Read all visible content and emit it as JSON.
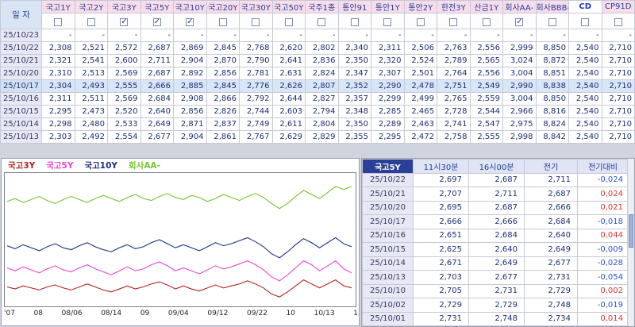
{
  "colors": {
    "header_bg": "#f8dcea",
    "header_text": "#21409a",
    "date_col_bg": "#e8e8f4",
    "selected_row_bg": "#d9e6f8",
    "grid_line": "#c6c9d8",
    "value_text": "#1c2f72",
    "detail_title_bg": "#2b3f96",
    "positive_diff": "#e03131",
    "negative_diff": "#2a52cc",
    "cd_column_bg": "#ffffff"
  },
  "main_table": {
    "date_header": "일 자",
    "columns": [
      {
        "label": "국고1Y",
        "checked": false
      },
      {
        "label": "국고2Y",
        "checked": false
      },
      {
        "label": "국고3Y",
        "checked": true
      },
      {
        "label": "국고5Y",
        "checked": true
      },
      {
        "label": "국고10Y",
        "checked": true
      },
      {
        "label": "국고20Y",
        "checked": false
      },
      {
        "label": "국고30Y",
        "checked": false
      },
      {
        "label": "국고50Y",
        "checked": false
      },
      {
        "label": "국주1종",
        "checked": false
      },
      {
        "label": "통안91",
        "checked": false
      },
      {
        "label": "통안1Y",
        "checked": false
      },
      {
        "label": "통안2Y",
        "checked": false
      },
      {
        "label": "한전3Y",
        "checked": false
      },
      {
        "label": "산금1Y",
        "checked": false
      },
      {
        "label": "회사AA-",
        "checked": true
      },
      {
        "label": "회사BBB-",
        "checked": false
      },
      {
        "label": "CD",
        "checked": false,
        "highlighted": true
      },
      {
        "label": "CP91D",
        "checked": false
      }
    ],
    "rows": [
      {
        "date": "25/10/23",
        "values": [
          "-",
          "-",
          "-",
          "-",
          "-",
          "-",
          "-",
          "-",
          "-",
          "-",
          "-",
          "-",
          "-",
          "-",
          "-",
          "-",
          "-",
          "-"
        ]
      },
      {
        "date": "25/10/22",
        "values": [
          "2,308",
          "2,521",
          "2,572",
          "2,687",
          "2,869",
          "2,845",
          "2,768",
          "2,620",
          "2,802",
          "2,340",
          "2,311",
          "2,506",
          "2,763",
          "2,556",
          "2,999",
          "8,850",
          "2,540",
          "2,710"
        ]
      },
      {
        "date": "25/10/21",
        "values": [
          "2,321",
          "2,541",
          "2,600",
          "2,711",
          "2,904",
          "2,870",
          "2,790",
          "2,641",
          "2,836",
          "2,350",
          "2,320",
          "2,524",
          "2,789",
          "2,565",
          "3,024",
          "8,872",
          "2,540",
          "2,710"
        ]
      },
      {
        "date": "25/10/20",
        "values": [
          "2,310",
          "2,513",
          "2,569",
          "2,687",
          "2,892",
          "2,856",
          "2,781",
          "2,631",
          "2,824",
          "2,347",
          "2,307",
          "2,501",
          "2,764",
          "2,556",
          "3,004",
          "8,851",
          "2,540",
          "2,710"
        ]
      },
      {
        "date": "25/10/17",
        "selected": true,
        "values": [
          "2,304",
          "2,493",
          "2,555",
          "2,666",
          "2,885",
          "2,845",
          "2,776",
          "2,626",
          "2,807",
          "2,352",
          "2,290",
          "2,478",
          "2,751",
          "2,549",
          "2,990",
          "8,838",
          "2,540",
          "2,710"
        ]
      },
      {
        "date": "25/10/16",
        "values": [
          "2,311",
          "2,511",
          "2,569",
          "2,684",
          "2,908",
          "2,866",
          "2,792",
          "2,644",
          "2,827",
          "2,357",
          "2,299",
          "2,499",
          "2,765",
          "2,559",
          "3,004",
          "8,850",
          "2,540",
          "2,710"
        ]
      },
      {
        "date": "25/10/15",
        "values": [
          "2,295",
          "2,473",
          "2,520",
          "2,640",
          "2,856",
          "2,826",
          "2,744",
          "2,603",
          "2,794",
          "2,348",
          "2,285",
          "2,465",
          "2,728",
          "2,544",
          "2,966",
          "8,816",
          "2,540",
          "2,710"
        ]
      },
      {
        "date": "25/10/14",
        "values": [
          "2,298",
          "2,480",
          "2,533",
          "2,649",
          "2,871",
          "2,837",
          "2,749",
          "2,611",
          "2,804",
          "2,350",
          "2,289",
          "2,463",
          "2,741",
          "2,547",
          "2,975",
          "8,824",
          "2,540",
          "2,710"
        ]
      },
      {
        "date": "25/10/13",
        "values": [
          "2,303",
          "2,492",
          "2,554",
          "2,677",
          "2,904",
          "2,861",
          "2,767",
          "2,629",
          "2,829",
          "2,355",
          "2,295",
          "2,472",
          "2,758",
          "2,555",
          "2,998",
          "8,842",
          "2,540",
          "2,710"
        ]
      }
    ]
  },
  "chart_data": {
    "type": "line",
    "title": "",
    "xlabel": "",
    "ylabel": "",
    "ylim": [
      2.38,
      3.66
    ],
    "grid": false,
    "legend_position": "top-left",
    "x_labels": [
      "'07",
      "08",
      "08/06",
      "08/14",
      "09",
      "09/04",
      "09/12",
      "09/22",
      "10",
      "10/13",
      "1"
    ],
    "series": [
      {
        "name": "국고3Y",
        "color": "#b22222",
        "values": [
          2.55,
          2.53,
          2.56,
          2.54,
          2.52,
          2.55,
          2.57,
          2.54,
          2.52,
          2.55,
          2.58,
          2.55,
          2.52,
          2.5,
          2.53,
          2.56,
          2.53,
          2.55,
          2.58,
          2.6,
          2.57,
          2.53,
          2.56,
          2.53,
          2.51,
          2.54,
          2.57,
          2.54,
          2.56,
          2.58,
          2.61,
          2.58,
          2.54,
          2.48,
          2.45,
          2.5,
          2.56,
          2.62,
          2.58,
          2.54,
          2.58,
          2.62,
          2.56,
          2.54
        ]
      },
      {
        "name": "국고5Y",
        "color": "#ee44cc",
        "values": [
          2.74,
          2.71,
          2.75,
          2.72,
          2.69,
          2.73,
          2.76,
          2.72,
          2.7,
          2.74,
          2.77,
          2.73,
          2.7,
          2.67,
          2.71,
          2.75,
          2.71,
          2.73,
          2.77,
          2.8,
          2.76,
          2.71,
          2.74,
          2.71,
          2.68,
          2.72,
          2.76,
          2.73,
          2.75,
          2.78,
          2.81,
          2.77,
          2.72,
          2.65,
          2.61,
          2.67,
          2.74,
          2.81,
          2.77,
          2.71,
          2.76,
          2.81,
          2.73,
          2.69
        ]
      },
      {
        "name": "국고10Y",
        "color": "#1b2f8a",
        "values": [
          2.96,
          2.93,
          2.97,
          2.94,
          2.91,
          2.95,
          2.98,
          2.94,
          2.92,
          2.96,
          2.99,
          2.95,
          2.92,
          2.9,
          2.94,
          2.97,
          2.93,
          2.95,
          2.99,
          3.02,
          2.98,
          2.94,
          2.97,
          2.94,
          2.91,
          2.95,
          2.99,
          2.96,
          2.98,
          3.01,
          3.04,
          3.0,
          2.95,
          2.88,
          2.84,
          2.9,
          2.97,
          3.03,
          2.99,
          2.94,
          2.99,
          3.04,
          2.98,
          2.95
        ]
      },
      {
        "name": "회사AA-",
        "color": "#76c22e",
        "values": [
          3.4,
          3.43,
          3.39,
          3.42,
          3.45,
          3.41,
          3.38,
          3.42,
          3.45,
          3.42,
          3.39,
          3.43,
          3.46,
          3.43,
          3.4,
          3.44,
          3.47,
          3.43,
          3.41,
          3.45,
          3.48,
          3.44,
          3.42,
          3.46,
          3.44,
          3.4,
          3.43,
          3.47,
          3.44,
          3.41,
          3.45,
          3.48,
          3.44,
          3.38,
          3.33,
          3.38,
          3.45,
          3.51,
          3.47,
          3.43,
          3.49,
          3.55,
          3.52,
          3.55
        ]
      }
    ]
  },
  "detail_table": {
    "title": "국고5Y",
    "headers": [
      "11시30분",
      "16시00분",
      "전기",
      "전기대비"
    ],
    "rows": [
      {
        "date": "25/10/22",
        "t1130": "2,697",
        "t1600": "2,687",
        "prev": "2,711",
        "diff": "-0,024"
      },
      {
        "date": "25/10/21",
        "t1130": "2,707",
        "t1600": "2,711",
        "prev": "2,687",
        "diff": "0,024"
      },
      {
        "date": "25/10/20",
        "t1130": "2,695",
        "t1600": "2,687",
        "prev": "2,666",
        "diff": "0,021"
      },
      {
        "date": "25/10/17",
        "t1130": "2,666",
        "t1600": "2,666",
        "prev": "2,684",
        "diff": "-0,018"
      },
      {
        "date": "25/10/16",
        "t1130": "2,651",
        "t1600": "2,684",
        "prev": "2,640",
        "diff": "0,044"
      },
      {
        "date": "25/10/15",
        "t1130": "2,625",
        "t1600": "2,640",
        "prev": "2,649",
        "diff": "-0,009"
      },
      {
        "date": "25/10/14",
        "t1130": "2,671",
        "t1600": "2,649",
        "prev": "2,677",
        "diff": "-0,028"
      },
      {
        "date": "25/10/13",
        "t1130": "2,703",
        "t1600": "2,677",
        "prev": "2,731",
        "diff": "-0,054"
      },
      {
        "date": "25/10/10",
        "t1130": "2,705",
        "t1600": "2,731",
        "prev": "2,729",
        "diff": "0,002"
      },
      {
        "date": "25/10/02",
        "t1130": "2,729",
        "t1600": "2,729",
        "prev": "2,748",
        "diff": "-0,019"
      },
      {
        "date": "25/10/01",
        "t1130": "2,731",
        "t1600": "2,748",
        "prev": "2,734",
        "diff": "0,014"
      }
    ]
  }
}
